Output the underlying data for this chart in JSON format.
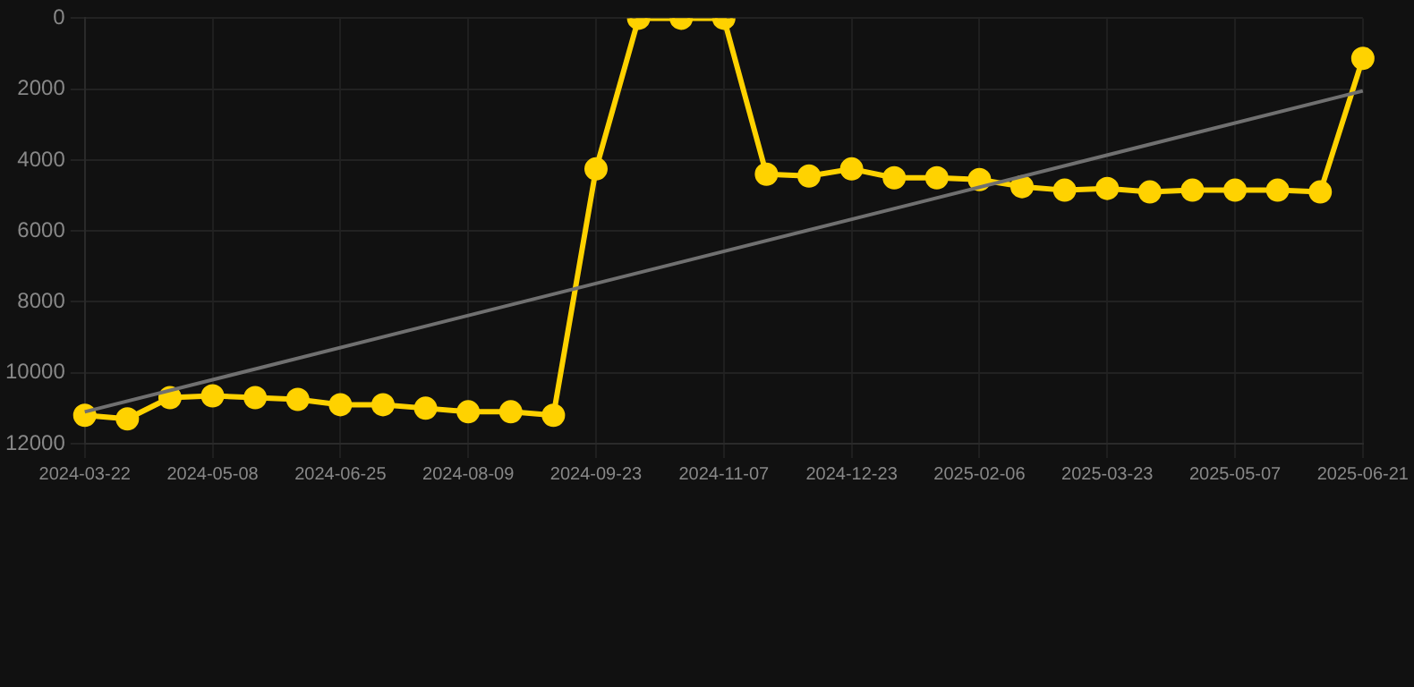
{
  "chart_data": {
    "type": "line",
    "categories": [
      "2024-03-22",
      null,
      null,
      "2024-05-08",
      null,
      null,
      "2024-06-25",
      null,
      null,
      "2024-08-09",
      null,
      null,
      "2024-09-23",
      null,
      null,
      "2024-11-07",
      null,
      null,
      "2024-12-23",
      null,
      null,
      "2025-02-06",
      null,
      null,
      "2025-03-23",
      null,
      null,
      "2025-05-07",
      null,
      null,
      "2025-06-21"
    ],
    "series": [
      {
        "color": "#ffd200",
        "marker": "circle",
        "values": [
          11200,
          11300,
          10700,
          10650,
          10700,
          10750,
          10900,
          10900,
          11000,
          11100,
          11100,
          11200,
          4250,
          0,
          0,
          0,
          4400,
          4450,
          4250,
          4500,
          4500,
          4550,
          4750,
          4850,
          4800,
          4900,
          4850,
          4850,
          4850,
          4900,
          1130
        ]
      },
      {
        "color": "#707070",
        "marker": "none",
        "values": [
          11100,
          null,
          null,
          null,
          null,
          null,
          null,
          null,
          null,
          null,
          null,
          null,
          null,
          null,
          null,
          null,
          null,
          null,
          null,
          null,
          null,
          null,
          null,
          null,
          null,
          null,
          null,
          null,
          null,
          null,
          2050
        ]
      }
    ],
    "ylim": [
      12000,
      0
    ],
    "yticks": [
      0,
      2000,
      4000,
      6000,
      8000,
      10000,
      12000
    ],
    "grid": true,
    "legend": false
  }
}
